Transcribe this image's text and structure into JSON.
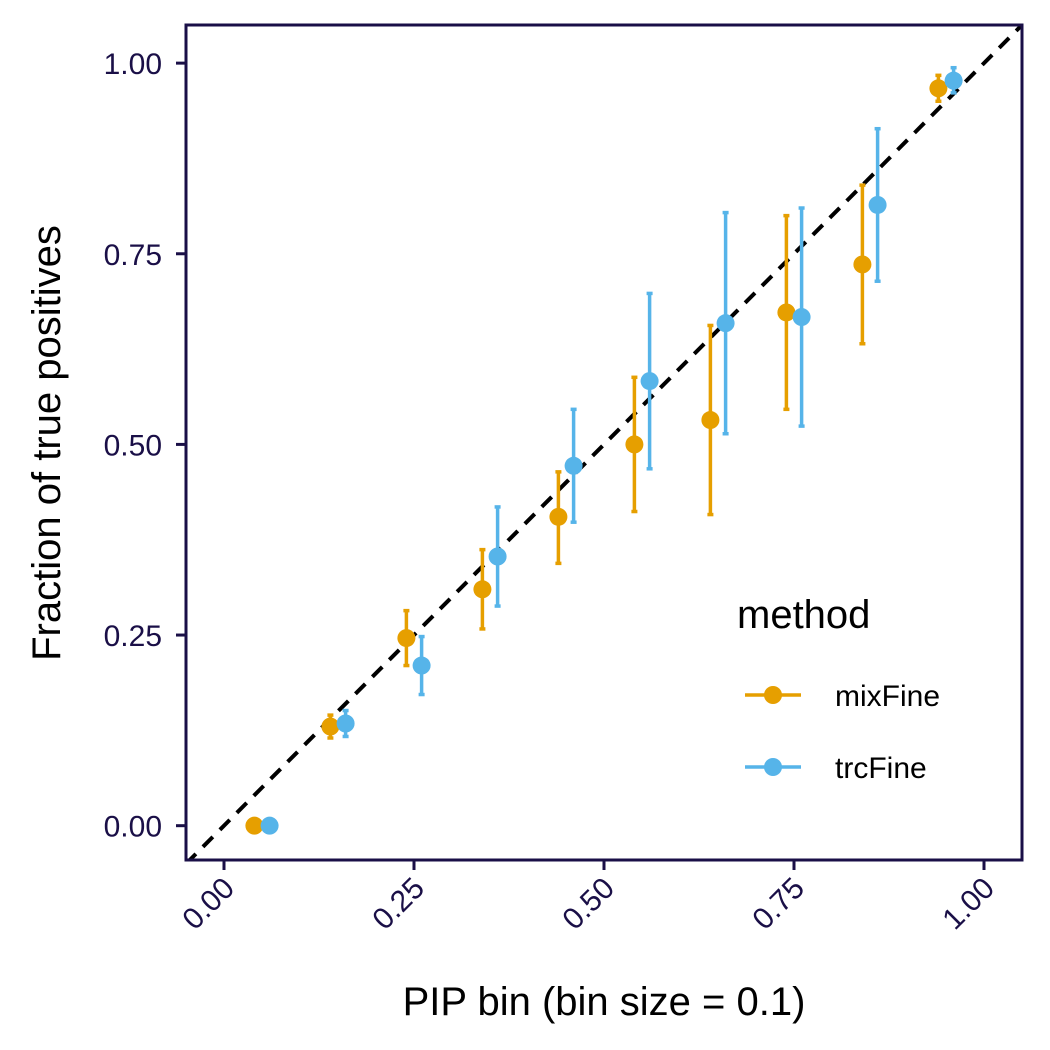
{
  "chart_data": {
    "type": "scatter",
    "title": "",
    "xlabel": "PIP bin (bin size = 0.1)",
    "ylabel": "Fraction of true positives",
    "xlim": [
      -0.05,
      1.05
    ],
    "ylim": [
      -0.045,
      1.05
    ],
    "x_ticks": [
      0.0,
      0.25,
      0.5,
      0.75,
      1.0
    ],
    "x_tick_labels": [
      "0.00",
      "0.25",
      "0.50",
      "0.75",
      "1.00"
    ],
    "y_ticks": [
      0.0,
      0.25,
      0.5,
      0.75,
      1.0
    ],
    "y_tick_labels": [
      "0.00",
      "0.25",
      "0.50",
      "0.75",
      "1.00"
    ],
    "grid": false,
    "reference_line": {
      "type": "diagonal",
      "style": "dashed",
      "color": "#000000"
    },
    "legend": {
      "title": "method",
      "position": "bottom-right"
    },
    "series": [
      {
        "name": "mixFine",
        "color": "#E69F00",
        "points": [
          {
            "x": 0.04,
            "y": 0.0,
            "lo": 0.0,
            "hi": 0.0
          },
          {
            "x": 0.14,
            "y": 0.13,
            "lo": 0.115,
            "hi": 0.145
          },
          {
            "x": 0.24,
            "y": 0.246,
            "lo": 0.21,
            "hi": 0.282
          },
          {
            "x": 0.34,
            "y": 0.31,
            "lo": 0.258,
            "hi": 0.362
          },
          {
            "x": 0.44,
            "y": 0.405,
            "lo": 0.344,
            "hi": 0.464
          },
          {
            "x": 0.54,
            "y": 0.5,
            "lo": 0.412,
            "hi": 0.588
          },
          {
            "x": 0.64,
            "y": 0.532,
            "lo": 0.408,
            "hi": 0.656
          },
          {
            "x": 0.74,
            "y": 0.673,
            "lo": 0.546,
            "hi": 0.8
          },
          {
            "x": 0.84,
            "y": 0.736,
            "lo": 0.632,
            "hi": 0.84
          },
          {
            "x": 0.94,
            "y": 0.967,
            "lo": 0.95,
            "hi": 0.984
          }
        ]
      },
      {
        "name": "trcFine",
        "color": "#56B4E9",
        "points": [
          {
            "x": 0.06,
            "y": 0.0,
            "lo": 0.0,
            "hi": 0.0
          },
          {
            "x": 0.16,
            "y": 0.134,
            "lo": 0.117,
            "hi": 0.151
          },
          {
            "x": 0.26,
            "y": 0.21,
            "lo": 0.172,
            "hi": 0.248
          },
          {
            "x": 0.36,
            "y": 0.353,
            "lo": 0.288,
            "hi": 0.418
          },
          {
            "x": 0.46,
            "y": 0.472,
            "lo": 0.398,
            "hi": 0.546
          },
          {
            "x": 0.56,
            "y": 0.583,
            "lo": 0.468,
            "hi": 0.698
          },
          {
            "x": 0.66,
            "y": 0.659,
            "lo": 0.514,
            "hi": 0.804
          },
          {
            "x": 0.76,
            "y": 0.667,
            "lo": 0.524,
            "hi": 0.81
          },
          {
            "x": 0.86,
            "y": 0.814,
            "lo": 0.714,
            "hi": 0.914
          },
          {
            "x": 0.96,
            "y": 0.977,
            "lo": 0.961,
            "hi": 0.994
          }
        ]
      }
    ]
  }
}
